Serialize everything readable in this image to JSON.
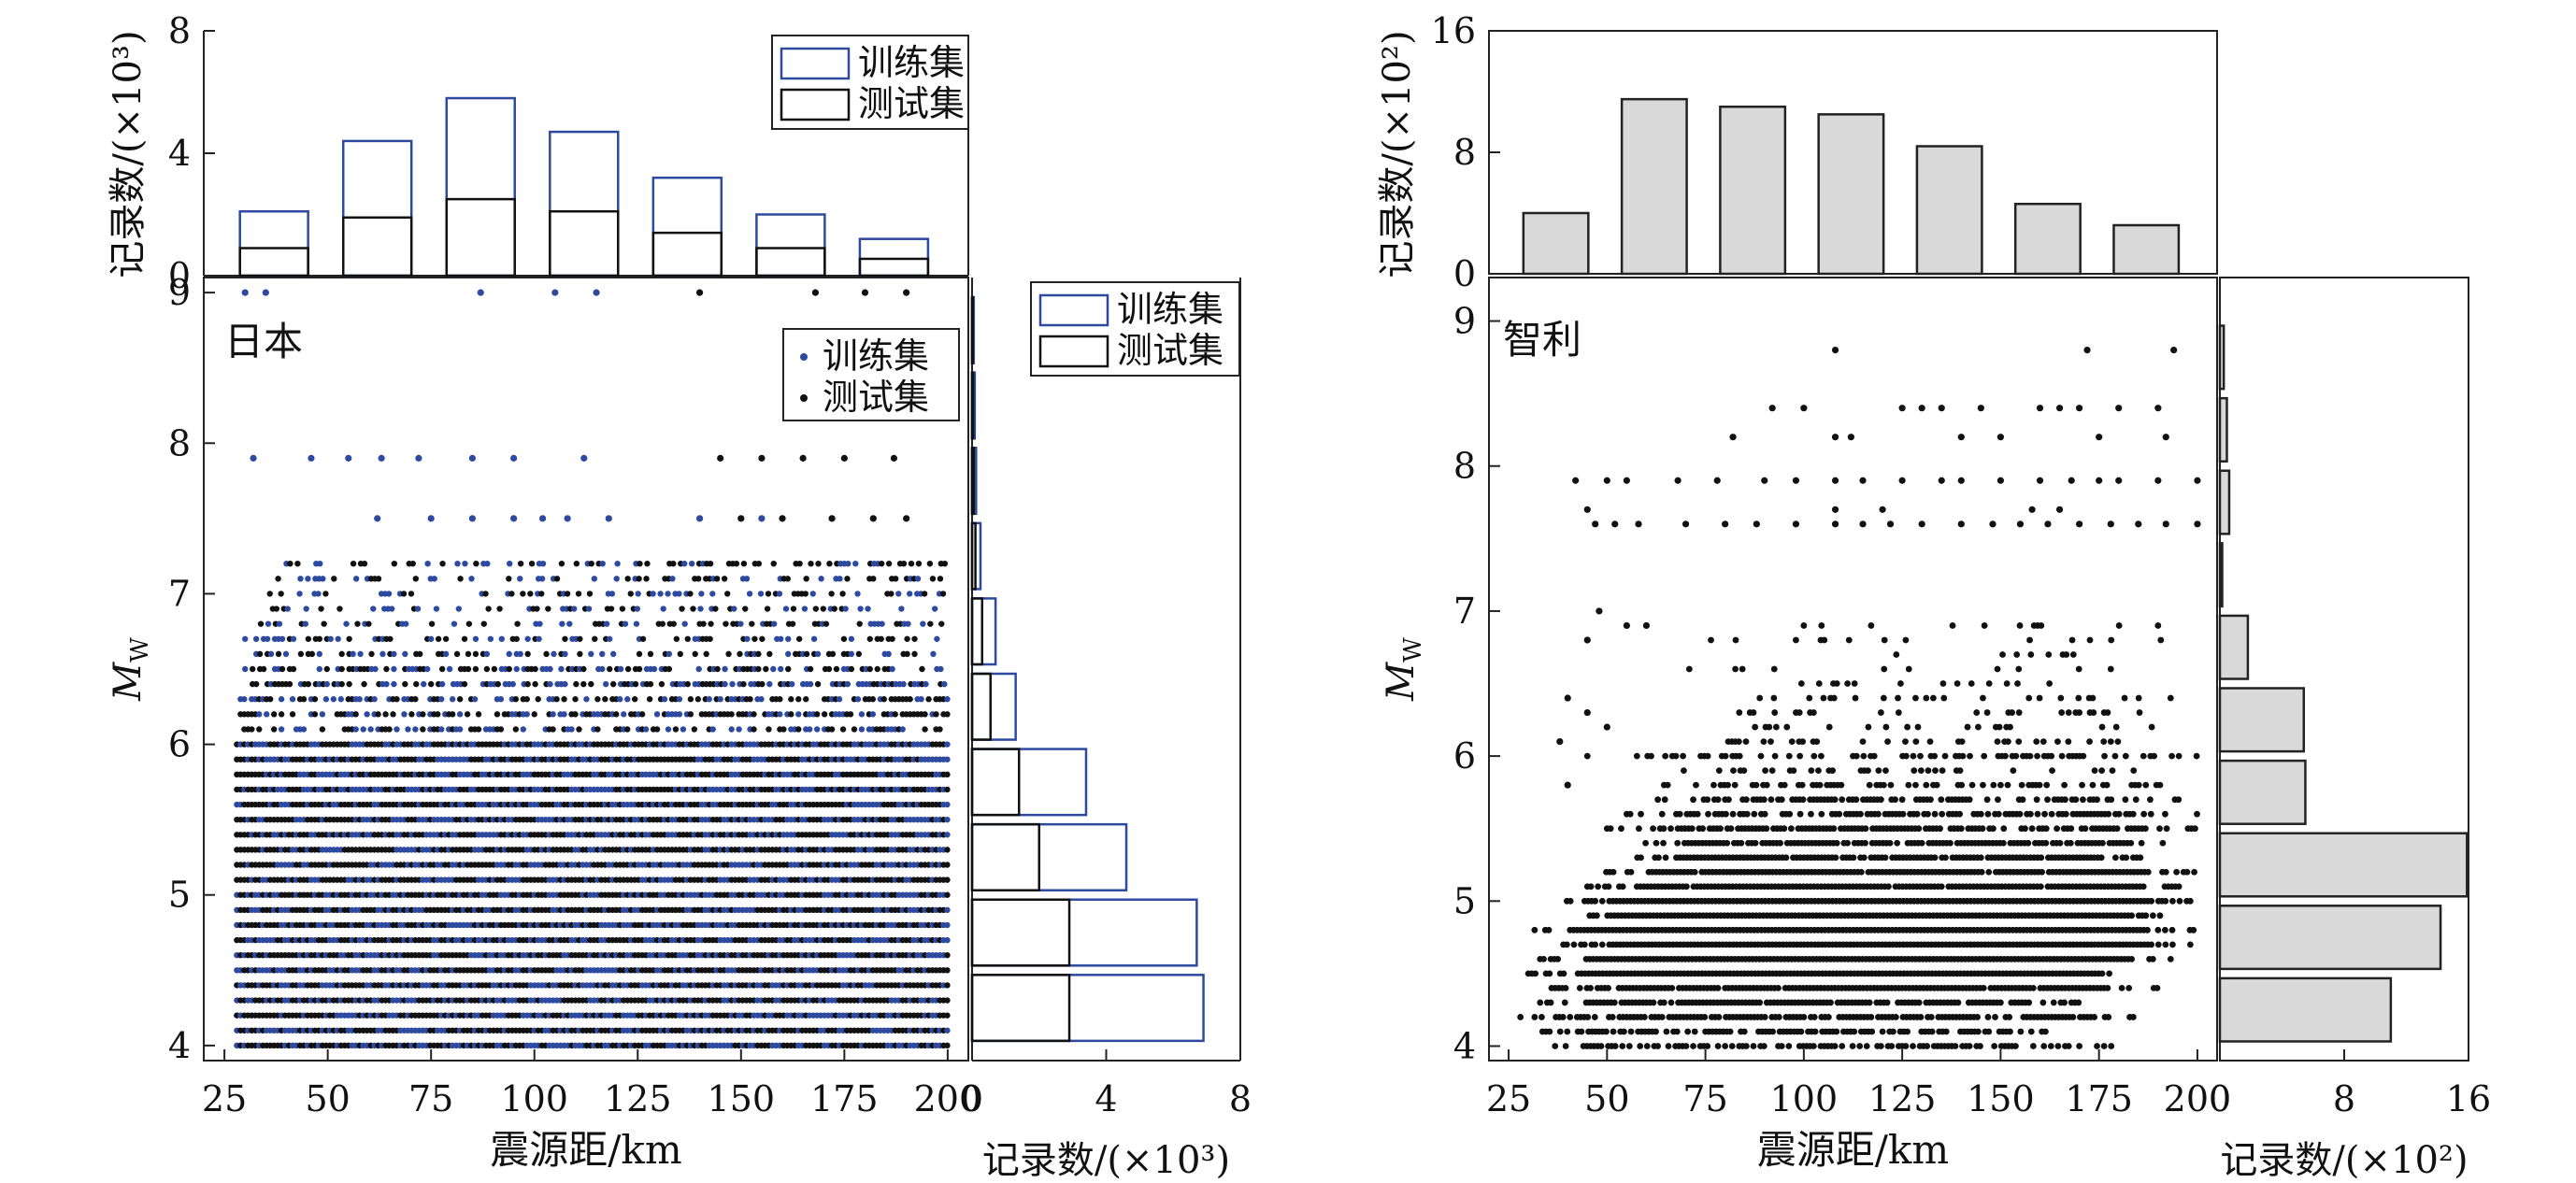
{
  "colors": {
    "train": "#2d4aa0",
    "test": "#111111",
    "gray_fill": "#d9d9d9",
    "frame": "#222222"
  },
  "chart_data": [
    {
      "panel": "japan",
      "type": "scatter",
      "label": "日本",
      "xlabel": "震源距/km",
      "ylabel": "Mw",
      "xlim": [
        20,
        205
      ],
      "ylim": [
        3.9,
        9.1
      ],
      "xticks": [
        "25",
        "50",
        "75",
        "100",
        "125",
        "150",
        "175",
        "200"
      ],
      "yticks": [
        "4",
        "5",
        "6",
        "7",
        "8",
        "9"
      ],
      "legend": [
        "训练集",
        "测试集"
      ],
      "magnitude_bands": [
        4.0,
        4.1,
        4.2,
        4.3,
        4.4,
        4.5,
        4.6,
        4.7,
        4.8,
        4.9,
        5.0,
        5.1,
        5.2,
        5.3,
        5.4,
        5.5,
        5.6,
        5.7,
        5.8,
        5.9,
        6.0,
        6.1,
        6.2,
        6.3,
        6.4,
        6.5,
        6.6,
        6.7,
        6.8,
        6.9,
        7.0,
        7.1,
        7.2
      ],
      "band_x_start": [
        28,
        28,
        28,
        28,
        28,
        28,
        28,
        28,
        28,
        28,
        28,
        28,
        28,
        28,
        28,
        28,
        28,
        28,
        28,
        28,
        28,
        28,
        28,
        28,
        30,
        30,
        30,
        30,
        32,
        34,
        36,
        38,
        40
      ],
      "sparse_points_train": [
        [
          30,
          9.0
        ],
        [
          35,
          9.0
        ],
        [
          87,
          9.0
        ],
        [
          105,
          9.0
        ],
        [
          115,
          9.0
        ],
        [
          32,
          7.9
        ],
        [
          46,
          7.9
        ],
        [
          55,
          7.9
        ],
        [
          63,
          7.9
        ],
        [
          72,
          7.9
        ],
        [
          85,
          7.9
        ],
        [
          95,
          7.9
        ],
        [
          112,
          7.9
        ],
        [
          62,
          7.5
        ],
        [
          75,
          7.5
        ],
        [
          85,
          7.5
        ],
        [
          95,
          7.5
        ],
        [
          102,
          7.5
        ],
        [
          108,
          7.5
        ],
        [
          118,
          7.5
        ],
        [
          140,
          7.5
        ],
        [
          155,
          7.5
        ]
      ],
      "sparse_points_test": [
        [
          140,
          9.0
        ],
        [
          168,
          9.0
        ],
        [
          180,
          9.0
        ],
        [
          190,
          9.0
        ],
        [
          145,
          7.9
        ],
        [
          155,
          7.9
        ],
        [
          165,
          7.9
        ],
        [
          175,
          7.9
        ],
        [
          187,
          7.9
        ],
        [
          150,
          7.5
        ],
        [
          160,
          7.5
        ],
        [
          172,
          7.5
        ],
        [
          182,
          7.5
        ],
        [
          190,
          7.5
        ]
      ],
      "top_hist": {
        "xlabel": "",
        "ylabel": "记录数/(×10³)",
        "ylim": [
          0,
          8
        ],
        "yticks": [
          "0",
          "4",
          "8"
        ],
        "bin_centers": [
          37,
          62,
          87,
          112,
          137,
          162,
          187
        ],
        "train": [
          2.1,
          4.4,
          5.8,
          4.7,
          3.2,
          2.0,
          1.2
        ],
        "test": [
          0.9,
          1.9,
          2.5,
          2.1,
          1.4,
          0.9,
          0.55
        ],
        "legend": [
          "训练集",
          "测试集"
        ]
      },
      "right_hist": {
        "xlabel": "记录数/(×10³)",
        "xlim": [
          0,
          8
        ],
        "xticks": [
          "0",
          "4",
          "8"
        ],
        "bin_centers": [
          4.25,
          4.75,
          5.25,
          5.75,
          6.25,
          6.75,
          7.25,
          7.75,
          8.25,
          8.75
        ],
        "train": [
          6.9,
          6.7,
          4.6,
          3.4,
          1.3,
          0.7,
          0.25,
          0.12,
          0.08,
          0.05
        ],
        "test": [
          2.9,
          2.9,
          2.0,
          1.4,
          0.55,
          0.3,
          0.1,
          0.05,
          0.03,
          0.02
        ],
        "legend": [
          "训练集",
          "测试集"
        ]
      }
    },
    {
      "panel": "chile",
      "type": "scatter",
      "label": "智利",
      "xlabel": "震源距/km",
      "ylabel": "Mw",
      "xlim": [
        20,
        205
      ],
      "ylim": [
        3.9,
        9.3
      ],
      "xticks": [
        "25",
        "50",
        "75",
        "100",
        "125",
        "150",
        "175",
        "200"
      ],
      "yticks": [
        "4",
        "5",
        "6",
        "7",
        "8",
        "9"
      ],
      "magnitude_bands": [
        4.0,
        4.1,
        4.2,
        4.3,
        4.4,
        4.5,
        4.6,
        4.7,
        4.8,
        4.9,
        5.0,
        5.1,
        5.2,
        5.3,
        5.4,
        5.5,
        5.6,
        5.7,
        5.8,
        5.9,
        6.0,
        6.1,
        6.2,
        6.3,
        6.4,
        6.5,
        6.6,
        6.7,
        6.8,
        6.9
      ],
      "band_x": [
        [
          35,
          180
        ],
        [
          30,
          165
        ],
        [
          28,
          185
        ],
        [
          33,
          170
        ],
        [
          35,
          190
        ],
        [
          30,
          185
        ],
        [
          33,
          195
        ],
        [
          38,
          200
        ],
        [
          28,
          200
        ],
        [
          42,
          195
        ],
        [
          38,
          200
        ],
        [
          45,
          198
        ],
        [
          48,
          200
        ],
        [
          55,
          198
        ],
        [
          58,
          196
        ],
        [
          50,
          200
        ],
        [
          55,
          200
        ],
        [
          62,
          198
        ],
        [
          60,
          195
        ],
        [
          65,
          198
        ],
        [
          45,
          200
        ],
        [
          70,
          195
        ],
        [
          75,
          195
        ],
        [
          80,
          190
        ],
        [
          78,
          198
        ],
        [
          85,
          180
        ],
        [
          70,
          198
        ],
        [
          92,
          172
        ],
        [
          62,
          192
        ],
        [
          100,
          192
        ]
      ],
      "band_density": [
        0.7,
        0.75,
        0.8,
        0.9,
        0.95,
        0.98,
        1,
        1,
        1,
        1,
        1,
        0.95,
        0.95,
        0.9,
        0.8,
        0.75,
        0.7,
        0.55,
        0.45,
        0.3,
        0.5,
        0.25,
        0.2,
        0.2,
        0.18,
        0.15,
        0.12,
        0.1,
        0.1,
        0.12
      ],
      "sparse_points": [
        [
          48,
          7.0
        ],
        [
          55,
          6.9
        ],
        [
          45,
          6.8
        ],
        [
          60,
          6.9
        ],
        [
          40,
          6.4
        ],
        [
          45,
          6.3
        ],
        [
          38,
          6.1
        ],
        [
          50,
          6.2
        ],
        [
          40,
          5.8
        ],
        [
          42,
          7.9
        ],
        [
          50,
          7.9
        ],
        [
          55,
          7.9
        ],
        [
          68,
          7.9
        ],
        [
          78,
          7.9
        ],
        [
          90,
          7.9
        ],
        [
          98,
          7.9
        ],
        [
          108,
          7.9
        ],
        [
          115,
          7.9
        ],
        [
          125,
          7.9
        ],
        [
          135,
          7.9
        ],
        [
          140,
          7.9
        ],
        [
          150,
          7.9
        ],
        [
          160,
          7.9
        ],
        [
          168,
          7.9
        ],
        [
          175,
          7.9
        ],
        [
          180,
          7.9
        ],
        [
          190,
          7.9
        ],
        [
          200,
          7.9
        ],
        [
          47,
          7.6
        ],
        [
          52,
          7.6
        ],
        [
          58,
          7.6
        ],
        [
          70,
          7.6
        ],
        [
          80,
          7.6
        ],
        [
          88,
          7.6
        ],
        [
          98,
          7.6
        ],
        [
          108,
          7.6
        ],
        [
          115,
          7.6
        ],
        [
          122,
          7.6
        ],
        [
          130,
          7.6
        ],
        [
          140,
          7.6
        ],
        [
          148,
          7.6
        ],
        [
          155,
          7.6
        ],
        [
          162,
          7.6
        ],
        [
          170,
          7.6
        ],
        [
          178,
          7.6
        ],
        [
          185,
          7.6
        ],
        [
          192,
          7.6
        ],
        [
          200,
          7.6
        ],
        [
          45,
          7.7
        ],
        [
          108,
          7.7
        ],
        [
          120,
          7.7
        ],
        [
          158,
          7.7
        ],
        [
          165,
          7.7
        ],
        [
          82,
          8.2
        ],
        [
          92,
          8.4
        ],
        [
          100,
          8.4
        ],
        [
          108,
          8.2
        ],
        [
          112,
          8.2
        ],
        [
          125,
          8.4
        ],
        [
          130,
          8.4
        ],
        [
          135,
          8.4
        ],
        [
          140,
          8.2
        ],
        [
          145,
          8.4
        ],
        [
          150,
          8.2
        ],
        [
          160,
          8.4
        ],
        [
          165,
          8.4
        ],
        [
          170,
          8.4
        ],
        [
          175,
          8.2
        ],
        [
          180,
          8.4
        ],
        [
          190,
          8.4
        ],
        [
          192,
          8.2
        ],
        [
          108,
          8.8
        ],
        [
          172,
          8.8
        ],
        [
          194,
          8.8
        ]
      ],
      "top_hist": {
        "ylabel": "记录数/(×10²)",
        "ylim": [
          0,
          16
        ],
        "yticks": [
          "0",
          "8",
          "16"
        ],
        "bin_centers": [
          37,
          62,
          87,
          112,
          137,
          162,
          187
        ],
        "values": [
          4.0,
          11.5,
          11.0,
          10.5,
          8.4,
          4.6,
          3.2
        ]
      },
      "right_hist": {
        "xlabel": "记录数/(×10²)",
        "xlim": [
          0,
          16
        ],
        "xticks": [
          "0",
          "8",
          "16"
        ],
        "bin_centers": [
          4.25,
          4.75,
          5.25,
          5.75,
          6.25,
          6.75,
          7.25,
          7.75,
          8.25,
          8.75
        ],
        "values": [
          11.0,
          14.2,
          15.9,
          5.5,
          5.4,
          1.8,
          0.15,
          0.6,
          0.45,
          0.25
        ]
      }
    }
  ]
}
